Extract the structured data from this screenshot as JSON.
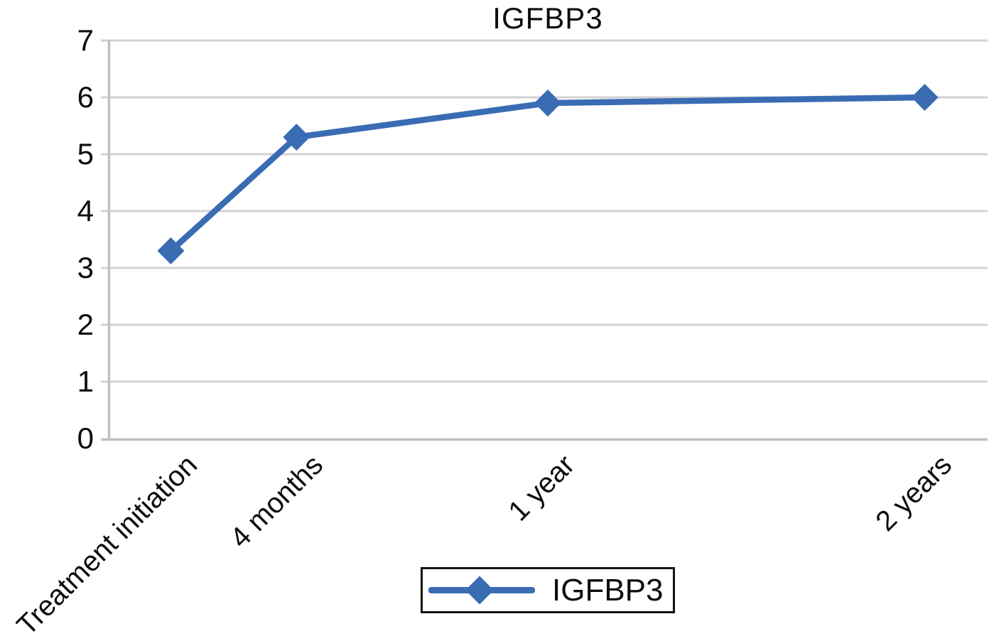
{
  "chart_data": {
    "type": "line",
    "title": "IGFBP3",
    "series_name": "IGFBP3",
    "categories": [
      "Treatment initiation",
      "4 months",
      "1 year",
      "2 years"
    ],
    "x_months": [
      0,
      4,
      12,
      24
    ],
    "values": [
      3.3,
      5.3,
      5.9,
      6.0
    ],
    "ylim": [
      0,
      7
    ],
    "yticks": [
      0,
      1,
      2,
      3,
      4,
      5,
      6,
      7
    ],
    "x_range_months": [
      -2,
      26
    ],
    "grid": "horizontal",
    "legend_position": "bottom-center",
    "marker": "diamond",
    "line_color": "#3A6CB4",
    "grid_color": "#d2d2d2",
    "axis_color": "#c0c0c0",
    "text_color": "#0d0d0d",
    "background": "#ffffff"
  }
}
